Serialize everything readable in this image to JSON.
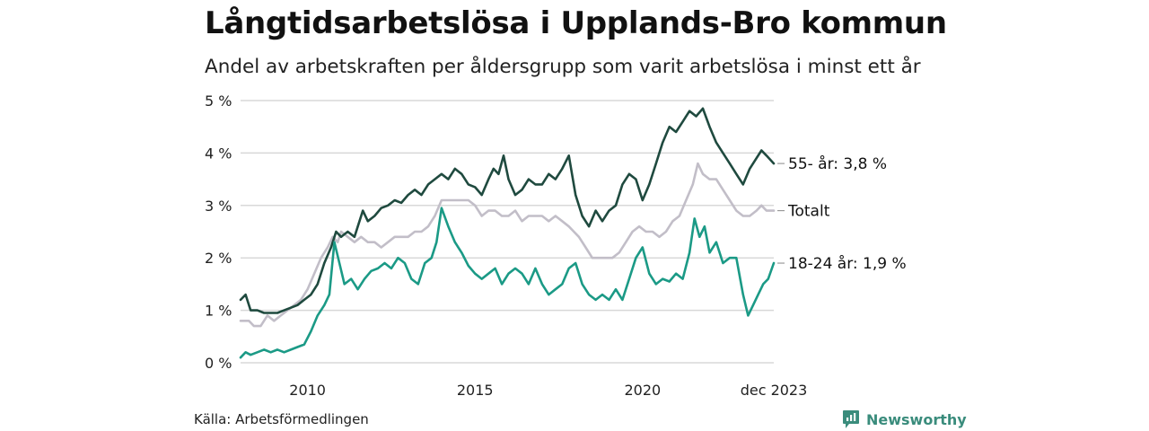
{
  "title": "Långtidsarbetslösa i Upplands-Bro kommun",
  "subtitle": "Andel av arbetskraften per åldersgrupp som varit arbetslösa i minst ett år",
  "source": "Källa: Arbetsförmedlingen",
  "brand": {
    "name": "Newsworthy",
    "icon": "bar-chart-badge-icon"
  },
  "colors": {
    "series55": "#1f4a3f",
    "total": "#c2bec8",
    "series18": "#1b9a86",
    "grid": "#d8d8d8",
    "brand": "#3a8c7c"
  },
  "chart_data": {
    "type": "line",
    "title": "Långtidsarbetslösa i Upplands-Bro kommun",
    "ylabel": "",
    "xlabel": "",
    "xlim": [
      2008.0,
      2023.917
    ],
    "ylim": [
      0,
      5
    ],
    "y_ticks": [
      0,
      1,
      2,
      3,
      4,
      5
    ],
    "y_tick_labels": [
      "0 %",
      "1 %",
      "2 %",
      "3 %",
      "4 %",
      "5 %"
    ],
    "x_ticks": [
      2010,
      2015,
      2020,
      2023.917
    ],
    "x_tick_labels": [
      "2010",
      "2015",
      "2020",
      "dec 2023"
    ],
    "series": [
      {
        "name": "Totalt",
        "label": "Totalt",
        "color": "#c2bec8",
        "points": [
          [
            2008.0,
            0.8
          ],
          [
            2008.25,
            0.8
          ],
          [
            2008.4,
            0.7
          ],
          [
            2008.6,
            0.7
          ],
          [
            2008.8,
            0.9
          ],
          [
            2009.0,
            0.8
          ],
          [
            2009.2,
            0.9
          ],
          [
            2009.4,
            1.0
          ],
          [
            2009.6,
            1.1
          ],
          [
            2009.8,
            1.2
          ],
          [
            2010.0,
            1.4
          ],
          [
            2010.2,
            1.7
          ],
          [
            2010.4,
            2.0
          ],
          [
            2010.6,
            2.2
          ],
          [
            2010.75,
            2.4
          ],
          [
            2010.9,
            2.3
          ],
          [
            2011.0,
            2.5
          ],
          [
            2011.2,
            2.4
          ],
          [
            2011.4,
            2.3
          ],
          [
            2011.6,
            2.4
          ],
          [
            2011.8,
            2.3
          ],
          [
            2012.0,
            2.3
          ],
          [
            2012.2,
            2.2
          ],
          [
            2012.4,
            2.3
          ],
          [
            2012.6,
            2.4
          ],
          [
            2012.8,
            2.4
          ],
          [
            2013.0,
            2.4
          ],
          [
            2013.2,
            2.5
          ],
          [
            2013.4,
            2.5
          ],
          [
            2013.6,
            2.6
          ],
          [
            2013.8,
            2.8
          ],
          [
            2014.0,
            3.1
          ],
          [
            2014.2,
            3.1
          ],
          [
            2014.4,
            3.1
          ],
          [
            2014.6,
            3.1
          ],
          [
            2014.8,
            3.1
          ],
          [
            2015.0,
            3.0
          ],
          [
            2015.2,
            2.8
          ],
          [
            2015.4,
            2.9
          ],
          [
            2015.6,
            2.9
          ],
          [
            2015.8,
            2.8
          ],
          [
            2016.0,
            2.8
          ],
          [
            2016.2,
            2.9
          ],
          [
            2016.4,
            2.7
          ],
          [
            2016.6,
            2.8
          ],
          [
            2016.8,
            2.8
          ],
          [
            2017.0,
            2.8
          ],
          [
            2017.2,
            2.7
          ],
          [
            2017.4,
            2.8
          ],
          [
            2017.6,
            2.7
          ],
          [
            2017.8,
            2.6
          ],
          [
            2017.95,
            2.5
          ],
          [
            2018.1,
            2.4
          ],
          [
            2018.3,
            2.2
          ],
          [
            2018.5,
            2.0
          ],
          [
            2018.7,
            2.0
          ],
          [
            2018.9,
            2.0
          ],
          [
            2019.1,
            2.0
          ],
          [
            2019.3,
            2.1
          ],
          [
            2019.5,
            2.3
          ],
          [
            2019.7,
            2.5
          ],
          [
            2019.9,
            2.6
          ],
          [
            2020.1,
            2.5
          ],
          [
            2020.3,
            2.5
          ],
          [
            2020.5,
            2.4
          ],
          [
            2020.7,
            2.5
          ],
          [
            2020.9,
            2.7
          ],
          [
            2021.1,
            2.8
          ],
          [
            2021.3,
            3.1
          ],
          [
            2021.5,
            3.4
          ],
          [
            2021.65,
            3.8
          ],
          [
            2021.8,
            3.6
          ],
          [
            2022.0,
            3.5
          ],
          [
            2022.2,
            3.5
          ],
          [
            2022.4,
            3.3
          ],
          [
            2022.6,
            3.1
          ],
          [
            2022.8,
            2.9
          ],
          [
            2023.0,
            2.8
          ],
          [
            2023.2,
            2.8
          ],
          [
            2023.4,
            2.9
          ],
          [
            2023.55,
            3.0
          ],
          [
            2023.7,
            2.9
          ],
          [
            2023.917,
            2.9
          ]
        ]
      },
      {
        "name": "55- år",
        "label": "55- år: 3,8 %",
        "color": "#1f4a3f",
        "points": [
          [
            2008.0,
            1.2
          ],
          [
            2008.15,
            1.3
          ],
          [
            2008.3,
            1.0
          ],
          [
            2008.5,
            1.0
          ],
          [
            2008.7,
            0.95
          ],
          [
            2008.9,
            0.95
          ],
          [
            2009.1,
            0.95
          ],
          [
            2009.3,
            1.0
          ],
          [
            2009.5,
            1.05
          ],
          [
            2009.7,
            1.1
          ],
          [
            2009.9,
            1.2
          ],
          [
            2010.1,
            1.3
          ],
          [
            2010.3,
            1.5
          ],
          [
            2010.5,
            1.9
          ],
          [
            2010.7,
            2.2
          ],
          [
            2010.85,
            2.5
          ],
          [
            2011.0,
            2.4
          ],
          [
            2011.2,
            2.5
          ],
          [
            2011.4,
            2.4
          ],
          [
            2011.5,
            2.6
          ],
          [
            2011.65,
            2.9
          ],
          [
            2011.8,
            2.7
          ],
          [
            2012.0,
            2.8
          ],
          [
            2012.2,
            2.95
          ],
          [
            2012.4,
            3.0
          ],
          [
            2012.6,
            3.1
          ],
          [
            2012.8,
            3.05
          ],
          [
            2013.0,
            3.2
          ],
          [
            2013.2,
            3.3
          ],
          [
            2013.4,
            3.2
          ],
          [
            2013.6,
            3.4
          ],
          [
            2013.8,
            3.5
          ],
          [
            2014.0,
            3.6
          ],
          [
            2014.2,
            3.5
          ],
          [
            2014.4,
            3.7
          ],
          [
            2014.6,
            3.6
          ],
          [
            2014.8,
            3.4
          ],
          [
            2015.0,
            3.35
          ],
          [
            2015.2,
            3.2
          ],
          [
            2015.4,
            3.5
          ],
          [
            2015.55,
            3.7
          ],
          [
            2015.7,
            3.6
          ],
          [
            2015.85,
            3.95
          ],
          [
            2016.0,
            3.5
          ],
          [
            2016.2,
            3.2
          ],
          [
            2016.4,
            3.3
          ],
          [
            2016.6,
            3.5
          ],
          [
            2016.8,
            3.4
          ],
          [
            2017.0,
            3.4
          ],
          [
            2017.2,
            3.6
          ],
          [
            2017.4,
            3.5
          ],
          [
            2017.6,
            3.7
          ],
          [
            2017.8,
            3.95
          ],
          [
            2018.0,
            3.2
          ],
          [
            2018.2,
            2.8
          ],
          [
            2018.4,
            2.6
          ],
          [
            2018.6,
            2.9
          ],
          [
            2018.8,
            2.7
          ],
          [
            2019.0,
            2.9
          ],
          [
            2019.2,
            3.0
          ],
          [
            2019.4,
            3.4
          ],
          [
            2019.6,
            3.6
          ],
          [
            2019.8,
            3.5
          ],
          [
            2020.0,
            3.1
          ],
          [
            2020.2,
            3.4
          ],
          [
            2020.4,
            3.8
          ],
          [
            2020.6,
            4.2
          ],
          [
            2020.8,
            4.5
          ],
          [
            2021.0,
            4.4
          ],
          [
            2021.2,
            4.6
          ],
          [
            2021.4,
            4.8
          ],
          [
            2021.6,
            4.7
          ],
          [
            2021.8,
            4.85
          ],
          [
            2022.0,
            4.5
          ],
          [
            2022.2,
            4.2
          ],
          [
            2022.4,
            4.0
          ],
          [
            2022.6,
            3.8
          ],
          [
            2022.8,
            3.6
          ],
          [
            2023.0,
            3.4
          ],
          [
            2023.2,
            3.7
          ],
          [
            2023.4,
            3.9
          ],
          [
            2023.55,
            4.05
          ],
          [
            2023.7,
            3.95
          ],
          [
            2023.917,
            3.8
          ]
        ]
      },
      {
        "name": "18-24 år",
        "label": "18-24 år: 1,9 %",
        "color": "#1b9a86",
        "points": [
          [
            2008.0,
            0.1
          ],
          [
            2008.15,
            0.2
          ],
          [
            2008.3,
            0.15
          ],
          [
            2008.5,
            0.2
          ],
          [
            2008.7,
            0.25
          ],
          [
            2008.9,
            0.2
          ],
          [
            2009.1,
            0.25
          ],
          [
            2009.3,
            0.2
          ],
          [
            2009.5,
            0.25
          ],
          [
            2009.7,
            0.3
          ],
          [
            2009.9,
            0.35
          ],
          [
            2010.1,
            0.6
          ],
          [
            2010.3,
            0.9
          ],
          [
            2010.5,
            1.1
          ],
          [
            2010.65,
            1.3
          ],
          [
            2010.8,
            2.3
          ],
          [
            2010.95,
            1.9
          ],
          [
            2011.1,
            1.5
          ],
          [
            2011.3,
            1.6
          ],
          [
            2011.5,
            1.4
          ],
          [
            2011.7,
            1.6
          ],
          [
            2011.9,
            1.75
          ],
          [
            2012.1,
            1.8
          ],
          [
            2012.3,
            1.9
          ],
          [
            2012.5,
            1.8
          ],
          [
            2012.7,
            2.0
          ],
          [
            2012.9,
            1.9
          ],
          [
            2013.1,
            1.6
          ],
          [
            2013.3,
            1.5
          ],
          [
            2013.5,
            1.9
          ],
          [
            2013.7,
            2.0
          ],
          [
            2013.85,
            2.3
          ],
          [
            2014.0,
            2.95
          ],
          [
            2014.2,
            2.6
          ],
          [
            2014.4,
            2.3
          ],
          [
            2014.6,
            2.1
          ],
          [
            2014.8,
            1.85
          ],
          [
            2015.0,
            1.7
          ],
          [
            2015.2,
            1.6
          ],
          [
            2015.4,
            1.7
          ],
          [
            2015.6,
            1.8
          ],
          [
            2015.8,
            1.5
          ],
          [
            2016.0,
            1.7
          ],
          [
            2016.2,
            1.8
          ],
          [
            2016.4,
            1.7
          ],
          [
            2016.6,
            1.5
          ],
          [
            2016.8,
            1.8
          ],
          [
            2017.0,
            1.5
          ],
          [
            2017.2,
            1.3
          ],
          [
            2017.4,
            1.4
          ],
          [
            2017.6,
            1.5
          ],
          [
            2017.8,
            1.8
          ],
          [
            2018.0,
            1.9
          ],
          [
            2018.2,
            1.5
          ],
          [
            2018.4,
            1.3
          ],
          [
            2018.6,
            1.2
          ],
          [
            2018.8,
            1.3
          ],
          [
            2019.0,
            1.2
          ],
          [
            2019.2,
            1.4
          ],
          [
            2019.4,
            1.2
          ],
          [
            2019.6,
            1.6
          ],
          [
            2019.8,
            2.0
          ],
          [
            2020.0,
            2.2
          ],
          [
            2020.2,
            1.7
          ],
          [
            2020.4,
            1.5
          ],
          [
            2020.6,
            1.6
          ],
          [
            2020.8,
            1.55
          ],
          [
            2021.0,
            1.7
          ],
          [
            2021.2,
            1.6
          ],
          [
            2021.4,
            2.1
          ],
          [
            2021.55,
            2.75
          ],
          [
            2021.7,
            2.4
          ],
          [
            2021.85,
            2.6
          ],
          [
            2022.0,
            2.1
          ],
          [
            2022.2,
            2.3
          ],
          [
            2022.4,
            1.9
          ],
          [
            2022.6,
            2.0
          ],
          [
            2022.8,
            2.0
          ],
          [
            2023.0,
            1.3
          ],
          [
            2023.15,
            0.9
          ],
          [
            2023.3,
            1.1
          ],
          [
            2023.45,
            1.3
          ],
          [
            2023.6,
            1.5
          ],
          [
            2023.75,
            1.6
          ],
          [
            2023.917,
            1.9
          ]
        ]
      }
    ]
  }
}
